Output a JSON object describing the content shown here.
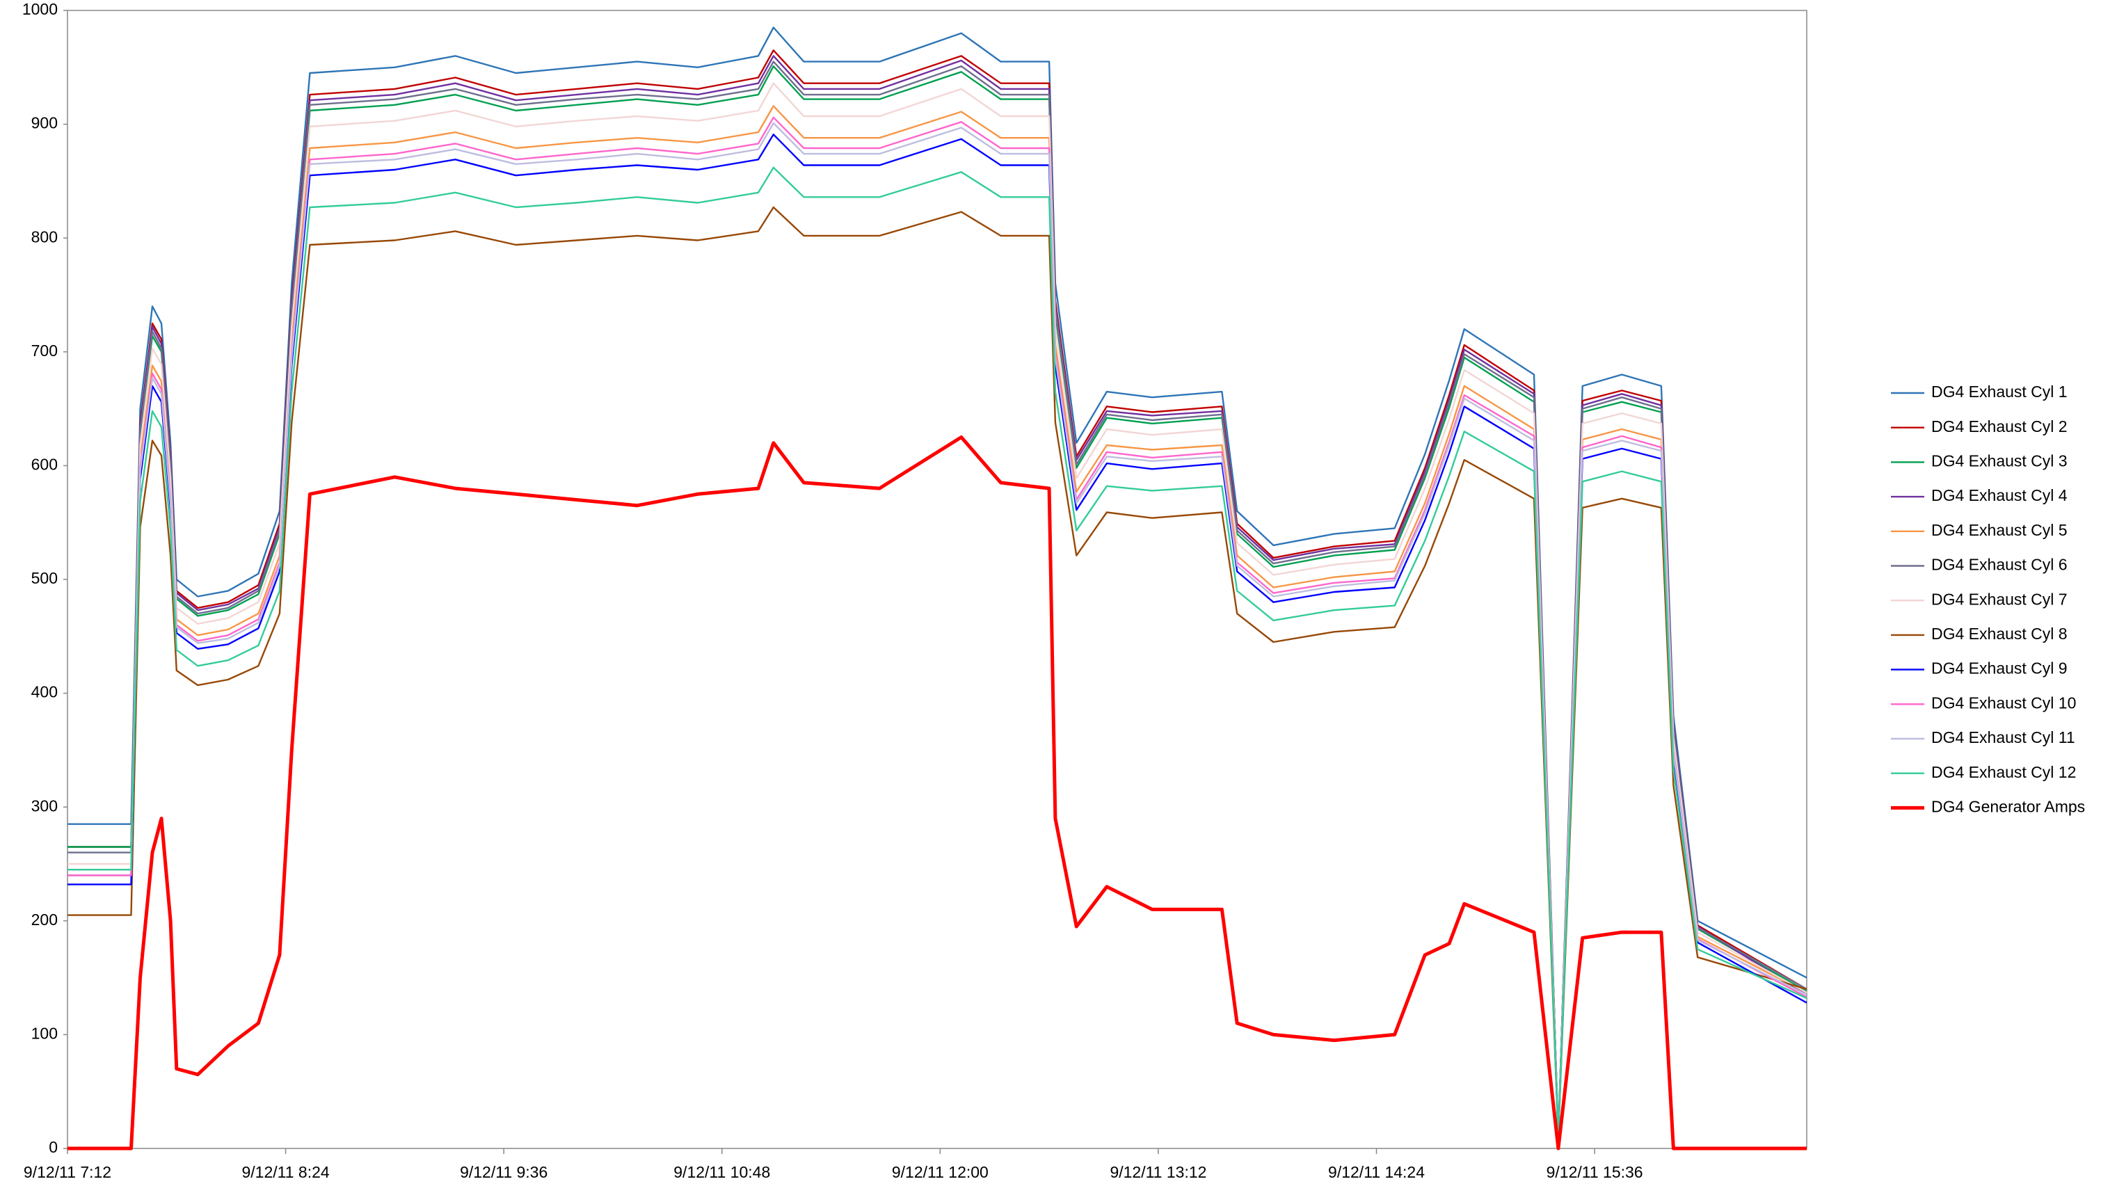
{
  "chart_data": {
    "type": "line",
    "x": [
      "9/12/11 7:12",
      "9/12/11 7:33",
      "9/12/11 7:36",
      "9/12/11 7:40",
      "9/12/11 7:43",
      "9/12/11 7:46",
      "9/12/11 7:48",
      "9/12/11 7:55",
      "9/12/11 8:05",
      "9/12/11 8:15",
      "9/12/11 8:22",
      "9/12/11 8:26",
      "9/12/11 8:32",
      "9/12/11 9:00",
      "9/12/11 9:20",
      "9/12/11 9:40",
      "9/12/11 10:00",
      "9/12/11 10:20",
      "9/12/11 10:40",
      "9/12/11 11:00",
      "9/12/11 11:05",
      "9/12/11 11:15",
      "9/12/11 11:40",
      "9/12/11 12:07",
      "9/12/11 12:20",
      "9/12/11 12:36",
      "9/12/11 12:38",
      "9/12/11 12:45",
      "9/12/11 12:55",
      "9/12/11 13:10",
      "9/12/11 13:33",
      "9/12/11 13:38",
      "9/12/11 13:50",
      "9/12/11 14:10",
      "9/12/11 14:30",
      "9/12/11 14:40",
      "9/12/11 14:48",
      "9/12/11 14:53",
      "9/12/11 15:16",
      "9/12/11 15:24",
      "9/12/11 15:32",
      "9/12/11 15:45",
      "9/12/11 15:58",
      "9/12/11 16:02",
      "9/12/11 16:10",
      "9/12/11 16:46"
    ],
    "xlim": [
      "9/12/11 7:12",
      "9/12/11 16:46"
    ],
    "xticks": [
      "9/12/11 7:12",
      "9/12/11 8:24",
      "9/12/11 9:36",
      "9/12/11 10:48",
      "9/12/11 12:00",
      "9/12/11 13:12",
      "9/12/11 14:24",
      "9/12/11 15:36"
    ],
    "ylim": [
      0,
      1000
    ],
    "yticks": [
      0,
      100,
      200,
      300,
      400,
      500,
      600,
      700,
      800,
      900,
      1000
    ],
    "grid": false,
    "legend": "right",
    "series": [
      {
        "name": "DG4 Exhaust Cyl 1",
        "color": "#2e75b6",
        "values": [
          285,
          285,
          650,
          740,
          725,
          620,
          500,
          485,
          490,
          505,
          560,
          760,
          945,
          950,
          960,
          945,
          950,
          955,
          950,
          960,
          985,
          955,
          955,
          980,
          955,
          955,
          760,
          620,
          665,
          660,
          665,
          560,
          530,
          540,
          545,
          610,
          675,
          720,
          680,
          10,
          670,
          680,
          670,
          380,
          200,
          150
        ]
      },
      {
        "name": "DG4 Exhaust Cyl 2",
        "color": "#c00000",
        "values": [
          265,
          265,
          637,
          725,
          711,
          608,
          490,
          475,
          480,
          495,
          549,
          745,
          926,
          931,
          941,
          926,
          931,
          936,
          931,
          941,
          965,
          936,
          936,
          960,
          936,
          936,
          745,
          608,
          652,
          647,
          652,
          549,
          519,
          529,
          534,
          598,
          662,
          706,
          666,
          10,
          657,
          666,
          657,
          372,
          196,
          140
        ]
      },
      {
        "name": "DG4 Exhaust Cyl 3",
        "color": "#00a050",
        "values": [
          265,
          265,
          627,
          714,
          700,
          598,
          483,
          468,
          473,
          487,
          540,
          733,
          912,
          917,
          926,
          912,
          917,
          922,
          917,
          926,
          951,
          922,
          922,
          946,
          922,
          922,
          733,
          598,
          642,
          637,
          642,
          540,
          511,
          521,
          526,
          589,
          651,
          695,
          656,
          10,
          647,
          656,
          647,
          367,
          193,
          138
        ]
      },
      {
        "name": "DG4 Exhaust Cyl 4",
        "color": "#7030a0",
        "values": [
          240,
          240,
          634,
          722,
          707,
          605,
          488,
          473,
          478,
          492,
          546,
          741,
          921,
          926,
          936,
          921,
          926,
          931,
          926,
          936,
          960,
          931,
          931,
          956,
          931,
          931,
          741,
          605,
          648,
          644,
          648,
          546,
          517,
          527,
          531,
          595,
          658,
          702,
          663,
          10,
          653,
          663,
          653,
          371,
          195,
          135
        ]
      },
      {
        "name": "DG4 Exhaust Cyl 5",
        "color": "#f79646",
        "values": [
          245,
          245,
          605,
          688,
          674,
          577,
          465,
          451,
          456,
          470,
          521,
          707,
          879,
          884,
          893,
          879,
          884,
          888,
          884,
          893,
          916,
          888,
          888,
          911,
          888,
          888,
          707,
          577,
          618,
          614,
          618,
          521,
          493,
          502,
          507,
          567,
          628,
          670,
          632,
          9,
          623,
          632,
          623,
          353,
          186,
          137
        ]
      },
      {
        "name": "DG4 Exhaust Cyl 6",
        "color": "#6e6e8e",
        "values": [
          260,
          260,
          631,
          718,
          703,
          601,
          485,
          470,
          475,
          490,
          543,
          737,
          917,
          922,
          931,
          917,
          922,
          926,
          922,
          931,
          955,
          926,
          926,
          951,
          926,
          926,
          737,
          601,
          645,
          640,
          645,
          543,
          514,
          524,
          529,
          592,
          655,
          698,
          660,
          10,
          650,
          660,
          650,
          369,
          194,
          140
        ]
      },
      {
        "name": "DG4 Exhaust Cyl 7",
        "color": "#f2d6d4",
        "values": [
          250,
          250,
          618,
          703,
          689,
          589,
          475,
          461,
          466,
          480,
          532,
          722,
          898,
          903,
          912,
          898,
          903,
          907,
          903,
          912,
          936,
          907,
          907,
          931,
          907,
          907,
          722,
          589,
          632,
          627,
          632,
          532,
          504,
          513,
          518,
          580,
          641,
          684,
          646,
          10,
          637,
          646,
          637,
          361,
          190,
          137
        ]
      },
      {
        "name": "DG4 Exhaust Cyl 8",
        "color": "#974806",
        "values": [
          205,
          205,
          546,
          622,
          609,
          521,
          420,
          407,
          412,
          424,
          470,
          638,
          794,
          798,
          806,
          794,
          798,
          802,
          798,
          806,
          827,
          802,
          802,
          823,
          802,
          802,
          638,
          521,
          559,
          554,
          559,
          470,
          445,
          454,
          458,
          512,
          567,
          605,
          571,
          8,
          563,
          571,
          563,
          319,
          168,
          140
        ]
      },
      {
        "name": "DG4 Exhaust Cyl 9",
        "color": "#0000ff",
        "values": [
          232,
          232,
          588,
          670,
          656,
          561,
          453,
          439,
          443,
          457,
          507,
          688,
          855,
          860,
          869,
          855,
          860,
          864,
          860,
          869,
          891,
          864,
          864,
          887,
          864,
          864,
          688,
          561,
          602,
          597,
          602,
          507,
          480,
          489,
          493,
          552,
          611,
          652,
          615,
          9,
          606,
          615,
          606,
          344,
          181,
          128
        ]
      },
      {
        "name": "DG4 Exhaust Cyl 10",
        "color": "#ff66cc",
        "values": [
          240,
          240,
          598,
          681,
          667,
          570,
          460,
          446,
          451,
          465,
          515,
          699,
          869,
          874,
          883,
          869,
          874,
          879,
          874,
          883,
          906,
          879,
          879,
          902,
          879,
          879,
          699,
          570,
          612,
          607,
          612,
          515,
          488,
          497,
          501,
          561,
          621,
          662,
          626,
          9,
          616,
          626,
          616,
          350,
          184,
          133
        ]
      },
      {
        "name": "DG4 Exhaust Cyl 11",
        "color": "#bdbde0",
        "values": [
          245,
          245,
          595,
          677,
          663,
          567,
          458,
          444,
          448,
          462,
          512,
          695,
          865,
          869,
          878,
          865,
          869,
          874,
          869,
          878,
          901,
          874,
          874,
          897,
          874,
          874,
          695,
          567,
          608,
          604,
          608,
          512,
          485,
          494,
          499,
          558,
          618,
          659,
          622,
          9,
          613,
          622,
          613,
          348,
          183,
          135
        ]
      },
      {
        "name": "DG4 Exhaust Cyl 12",
        "color": "#33cc99",
        "values": [
          245,
          245,
          569,
          648,
          634,
          543,
          438,
          424,
          429,
          442,
          490,
          665,
          827,
          831,
          840,
          827,
          831,
          836,
          831,
          840,
          862,
          836,
          836,
          858,
          836,
          836,
          665,
          543,
          582,
          578,
          582,
          490,
          464,
          473,
          477,
          534,
          591,
          630,
          595,
          9,
          586,
          595,
          586,
          333,
          175,
          132
        ]
      },
      {
        "name": "DG4 Generator Amps",
        "color": "#ff0000",
        "values": [
          0,
          0,
          150,
          260,
          290,
          200,
          70,
          65,
          90,
          110,
          170,
          350,
          575,
          590,
          580,
          575,
          570,
          565,
          575,
          580,
          620,
          585,
          580,
          625,
          585,
          580,
          290,
          195,
          230,
          210,
          210,
          110,
          100,
          95,
          100,
          170,
          180,
          215,
          190,
          0,
          185,
          190,
          190,
          0,
          0,
          0
        ]
      }
    ]
  }
}
